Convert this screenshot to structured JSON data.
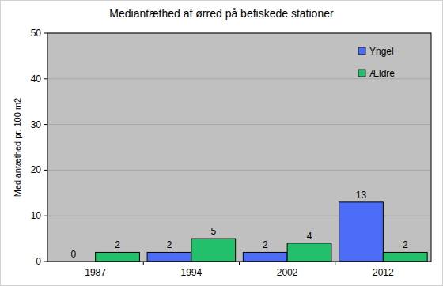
{
  "chart_data": {
    "type": "bar",
    "title": "Mediantæthed af ørred på befiskede stationer",
    "y_label": "Mediantæthed pr. 100 m2",
    "categories": [
      "1987",
      "1994",
      "2002",
      "2012"
    ],
    "series": [
      {
        "name": "Yngel",
        "color": "#4a6cf7",
        "values": [
          0,
          2,
          2,
          13
        ]
      },
      {
        "name": "Ældre",
        "color": "#22c06a",
        "values": [
          2,
          5,
          4,
          2
        ]
      }
    ],
    "ylim": [
      0,
      50
    ],
    "yticks": [
      0,
      10,
      20,
      30,
      40,
      50
    ],
    "grid": true,
    "legend": "upper right",
    "data_labels": true
  }
}
